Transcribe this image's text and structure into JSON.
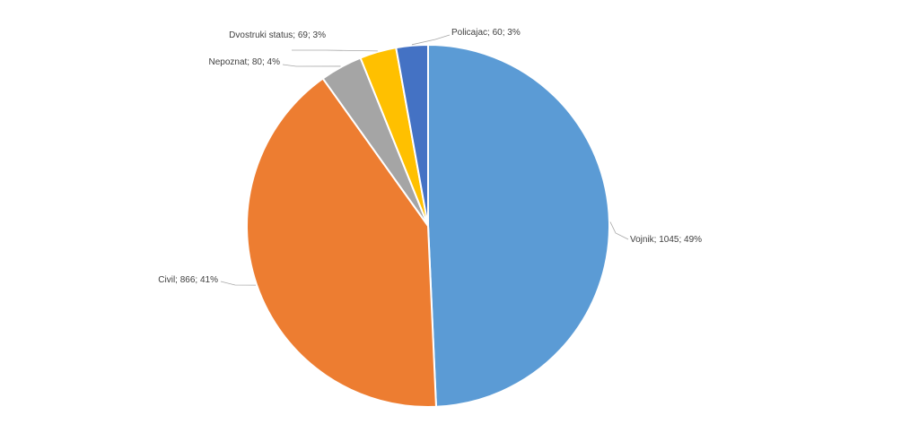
{
  "chart_data": {
    "type": "pie",
    "title": "",
    "slices": [
      {
        "name": "Vojnik",
        "value": 1045,
        "percent": 49,
        "label": "Vojnik; 1045; 49%",
        "color": "#5b9bd5"
      },
      {
        "name": "Civil",
        "value": 866,
        "percent": 41,
        "label": "Civil; 866; 41%",
        "color": "#ed7d31"
      },
      {
        "name": "Nepoznat",
        "value": 80,
        "percent": 4,
        "label": "Nepoznat; 80; 4%",
        "color": "#a5a5a5"
      },
      {
        "name": "Dvostruki status",
        "value": 69,
        "percent": 3,
        "label": "Dvostruki status; 69; 3%",
        "color": "#ffc000"
      },
      {
        "name": "Policajac",
        "value": 60,
        "percent": 3,
        "label": "Policajac; 60; 3%",
        "color": "#4472c4"
      }
    ],
    "start_angle": "12 o'clock",
    "direction": "clockwise",
    "legend": "none",
    "data_labels": "outside-with-leader-lines"
  }
}
